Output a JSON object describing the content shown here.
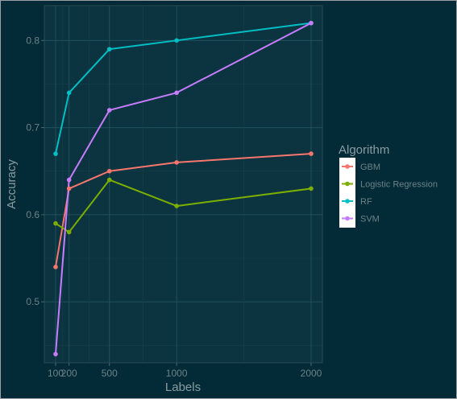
{
  "chart_data": {
    "type": "line",
    "xlabel": "Labels",
    "ylabel": "Accuracy",
    "x": [
      100,
      200,
      500,
      1000,
      2000
    ],
    "x_ticks": [
      100,
      200,
      500,
      1000,
      2000
    ],
    "x_tick_labels": [
      "100",
      "200",
      "500",
      "1000",
      "2000"
    ],
    "y_ticks": [
      0.5,
      0.6,
      0.7,
      0.8
    ],
    "y_tick_labels": [
      "0.5",
      "0.6",
      "0.7",
      "0.8"
    ],
    "xlim": [
      0,
      2100
    ],
    "ylim": [
      0.43,
      0.84
    ],
    "grid": true,
    "legend_title": "Algorithm",
    "legend_position": "right",
    "series": [
      {
        "name": "GBM",
        "color": "#f8766d",
        "values": [
          0.54,
          0.63,
          0.65,
          0.66,
          0.67
        ]
      },
      {
        "name": "Logistic Regression",
        "color": "#7cae00",
        "values": [
          0.59,
          0.58,
          0.64,
          0.61,
          0.63
        ]
      },
      {
        "name": "RF",
        "color": "#00bfc4",
        "values": [
          0.67,
          0.74,
          0.79,
          0.8,
          0.82
        ]
      },
      {
        "name": "SVM",
        "color": "#c77cff",
        "values": [
          0.44,
          0.64,
          0.72,
          0.74,
          0.82
        ]
      }
    ]
  }
}
